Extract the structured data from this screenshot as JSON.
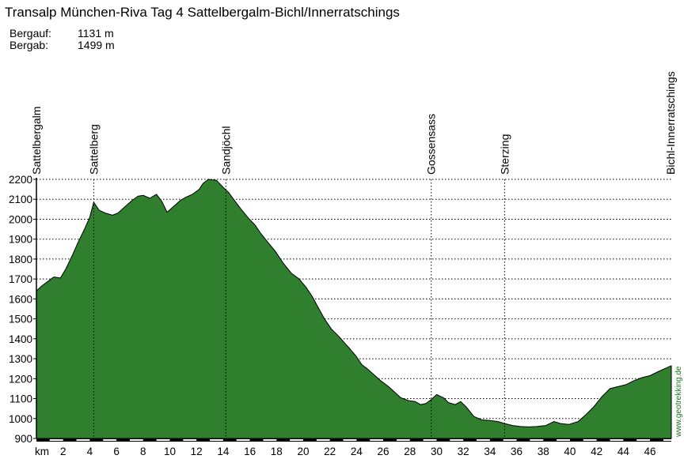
{
  "chart_data": {
    "type": "area",
    "title": "Transalp München-Riva Tag 4 Sattelbergalm-Bichl/Innerratschings",
    "stats": [
      {
        "label": "Bergauf:",
        "value": "1131 m"
      },
      {
        "label": "Bergab:",
        "value": "1499 m"
      }
    ],
    "x_unit_label": "km",
    "x_ticks": [
      2,
      4,
      6,
      8,
      10,
      12,
      14,
      16,
      18,
      20,
      22,
      24,
      26,
      28,
      30,
      32,
      34,
      36,
      38,
      40,
      42,
      44,
      46
    ],
    "xlim": [
      0,
      47.6
    ],
    "y_ticks": [
      900,
      1000,
      1100,
      1200,
      1300,
      1400,
      1500,
      1600,
      1700,
      1800,
      1900,
      2000,
      2100,
      2200
    ],
    "ylim": [
      900,
      2200
    ],
    "grid": "dotted",
    "fill_color": "#2f7f2f",
    "waypoints": [
      {
        "name": "Sattelbergalm",
        "km": 0
      },
      {
        "name": "Sattelberg",
        "km": 4.3
      },
      {
        "name": "Sandjöchl",
        "km": 14.2
      },
      {
        "name": "Gossensass",
        "km": 29.6
      },
      {
        "name": "Sterzing",
        "km": 35.1
      },
      {
        "name": "Bichl-Innerratschings",
        "km": 47.6
      }
    ],
    "credit": "www.geotrekking.de",
    "series": [
      {
        "points": [
          [
            0,
            1640
          ],
          [
            0.4,
            1665
          ],
          [
            0.9,
            1690
          ],
          [
            1.3,
            1710
          ],
          [
            1.8,
            1705
          ],
          [
            2.2,
            1750
          ],
          [
            2.7,
            1820
          ],
          [
            3.1,
            1880
          ],
          [
            3.6,
            1950
          ],
          [
            4.0,
            2010
          ],
          [
            4.3,
            2085
          ],
          [
            4.7,
            2045
          ],
          [
            5.2,
            2030
          ],
          [
            5.7,
            2020
          ],
          [
            6.1,
            2030
          ],
          [
            6.6,
            2060
          ],
          [
            7.1,
            2090
          ],
          [
            7.6,
            2115
          ],
          [
            8.0,
            2120
          ],
          [
            8.5,
            2105
          ],
          [
            9.0,
            2125
          ],
          [
            9.4,
            2090
          ],
          [
            9.8,
            2035
          ],
          [
            10.3,
            2065
          ],
          [
            10.8,
            2095
          ],
          [
            11.2,
            2110
          ],
          [
            11.7,
            2125
          ],
          [
            12.2,
            2150
          ],
          [
            12.5,
            2180
          ],
          [
            12.9,
            2200
          ],
          [
            13.5,
            2195
          ],
          [
            14.0,
            2160
          ],
          [
            14.4,
            2135
          ],
          [
            14.9,
            2090
          ],
          [
            15.4,
            2045
          ],
          [
            15.9,
            2005
          ],
          [
            16.4,
            1970
          ],
          [
            16.8,
            1930
          ],
          [
            17.4,
            1880
          ],
          [
            17.9,
            1840
          ],
          [
            18.5,
            1780
          ],
          [
            19.1,
            1730
          ],
          [
            19.7,
            1700
          ],
          [
            20.2,
            1660
          ],
          [
            20.7,
            1610
          ],
          [
            21.1,
            1560
          ],
          [
            21.6,
            1500
          ],
          [
            22.1,
            1450
          ],
          [
            22.7,
            1410
          ],
          [
            23.1,
            1380
          ],
          [
            23.5,
            1350
          ],
          [
            24.0,
            1310
          ],
          [
            24.4,
            1270
          ],
          [
            24.8,
            1250
          ],
          [
            25.3,
            1220
          ],
          [
            25.8,
            1190
          ],
          [
            26.4,
            1160
          ],
          [
            26.9,
            1130
          ],
          [
            27.3,
            1105
          ],
          [
            27.9,
            1090
          ],
          [
            28.4,
            1085
          ],
          [
            28.8,
            1070
          ],
          [
            29.2,
            1075
          ],
          [
            29.6,
            1095
          ],
          [
            30.0,
            1120
          ],
          [
            30.5,
            1105
          ],
          [
            30.9,
            1080
          ],
          [
            31.4,
            1070
          ],
          [
            31.8,
            1085
          ],
          [
            32.2,
            1060
          ],
          [
            32.8,
            1010
          ],
          [
            33.4,
            993
          ],
          [
            34.0,
            990
          ],
          [
            34.6,
            985
          ],
          [
            35.1,
            975
          ],
          [
            35.7,
            965
          ],
          [
            36.3,
            960
          ],
          [
            36.9,
            958
          ],
          [
            37.5,
            960
          ],
          [
            38.2,
            965
          ],
          [
            38.8,
            985
          ],
          [
            39.3,
            975
          ],
          [
            39.9,
            970
          ],
          [
            40.6,
            985
          ],
          [
            41.2,
            1020
          ],
          [
            41.8,
            1060
          ],
          [
            42.4,
            1110
          ],
          [
            43.0,
            1150
          ],
          [
            43.6,
            1160
          ],
          [
            44.2,
            1170
          ],
          [
            44.8,
            1190
          ],
          [
            45.4,
            1205
          ],
          [
            46.0,
            1215
          ],
          [
            46.6,
            1235
          ],
          [
            47.1,
            1250
          ],
          [
            47.6,
            1265
          ]
        ]
      }
    ]
  }
}
